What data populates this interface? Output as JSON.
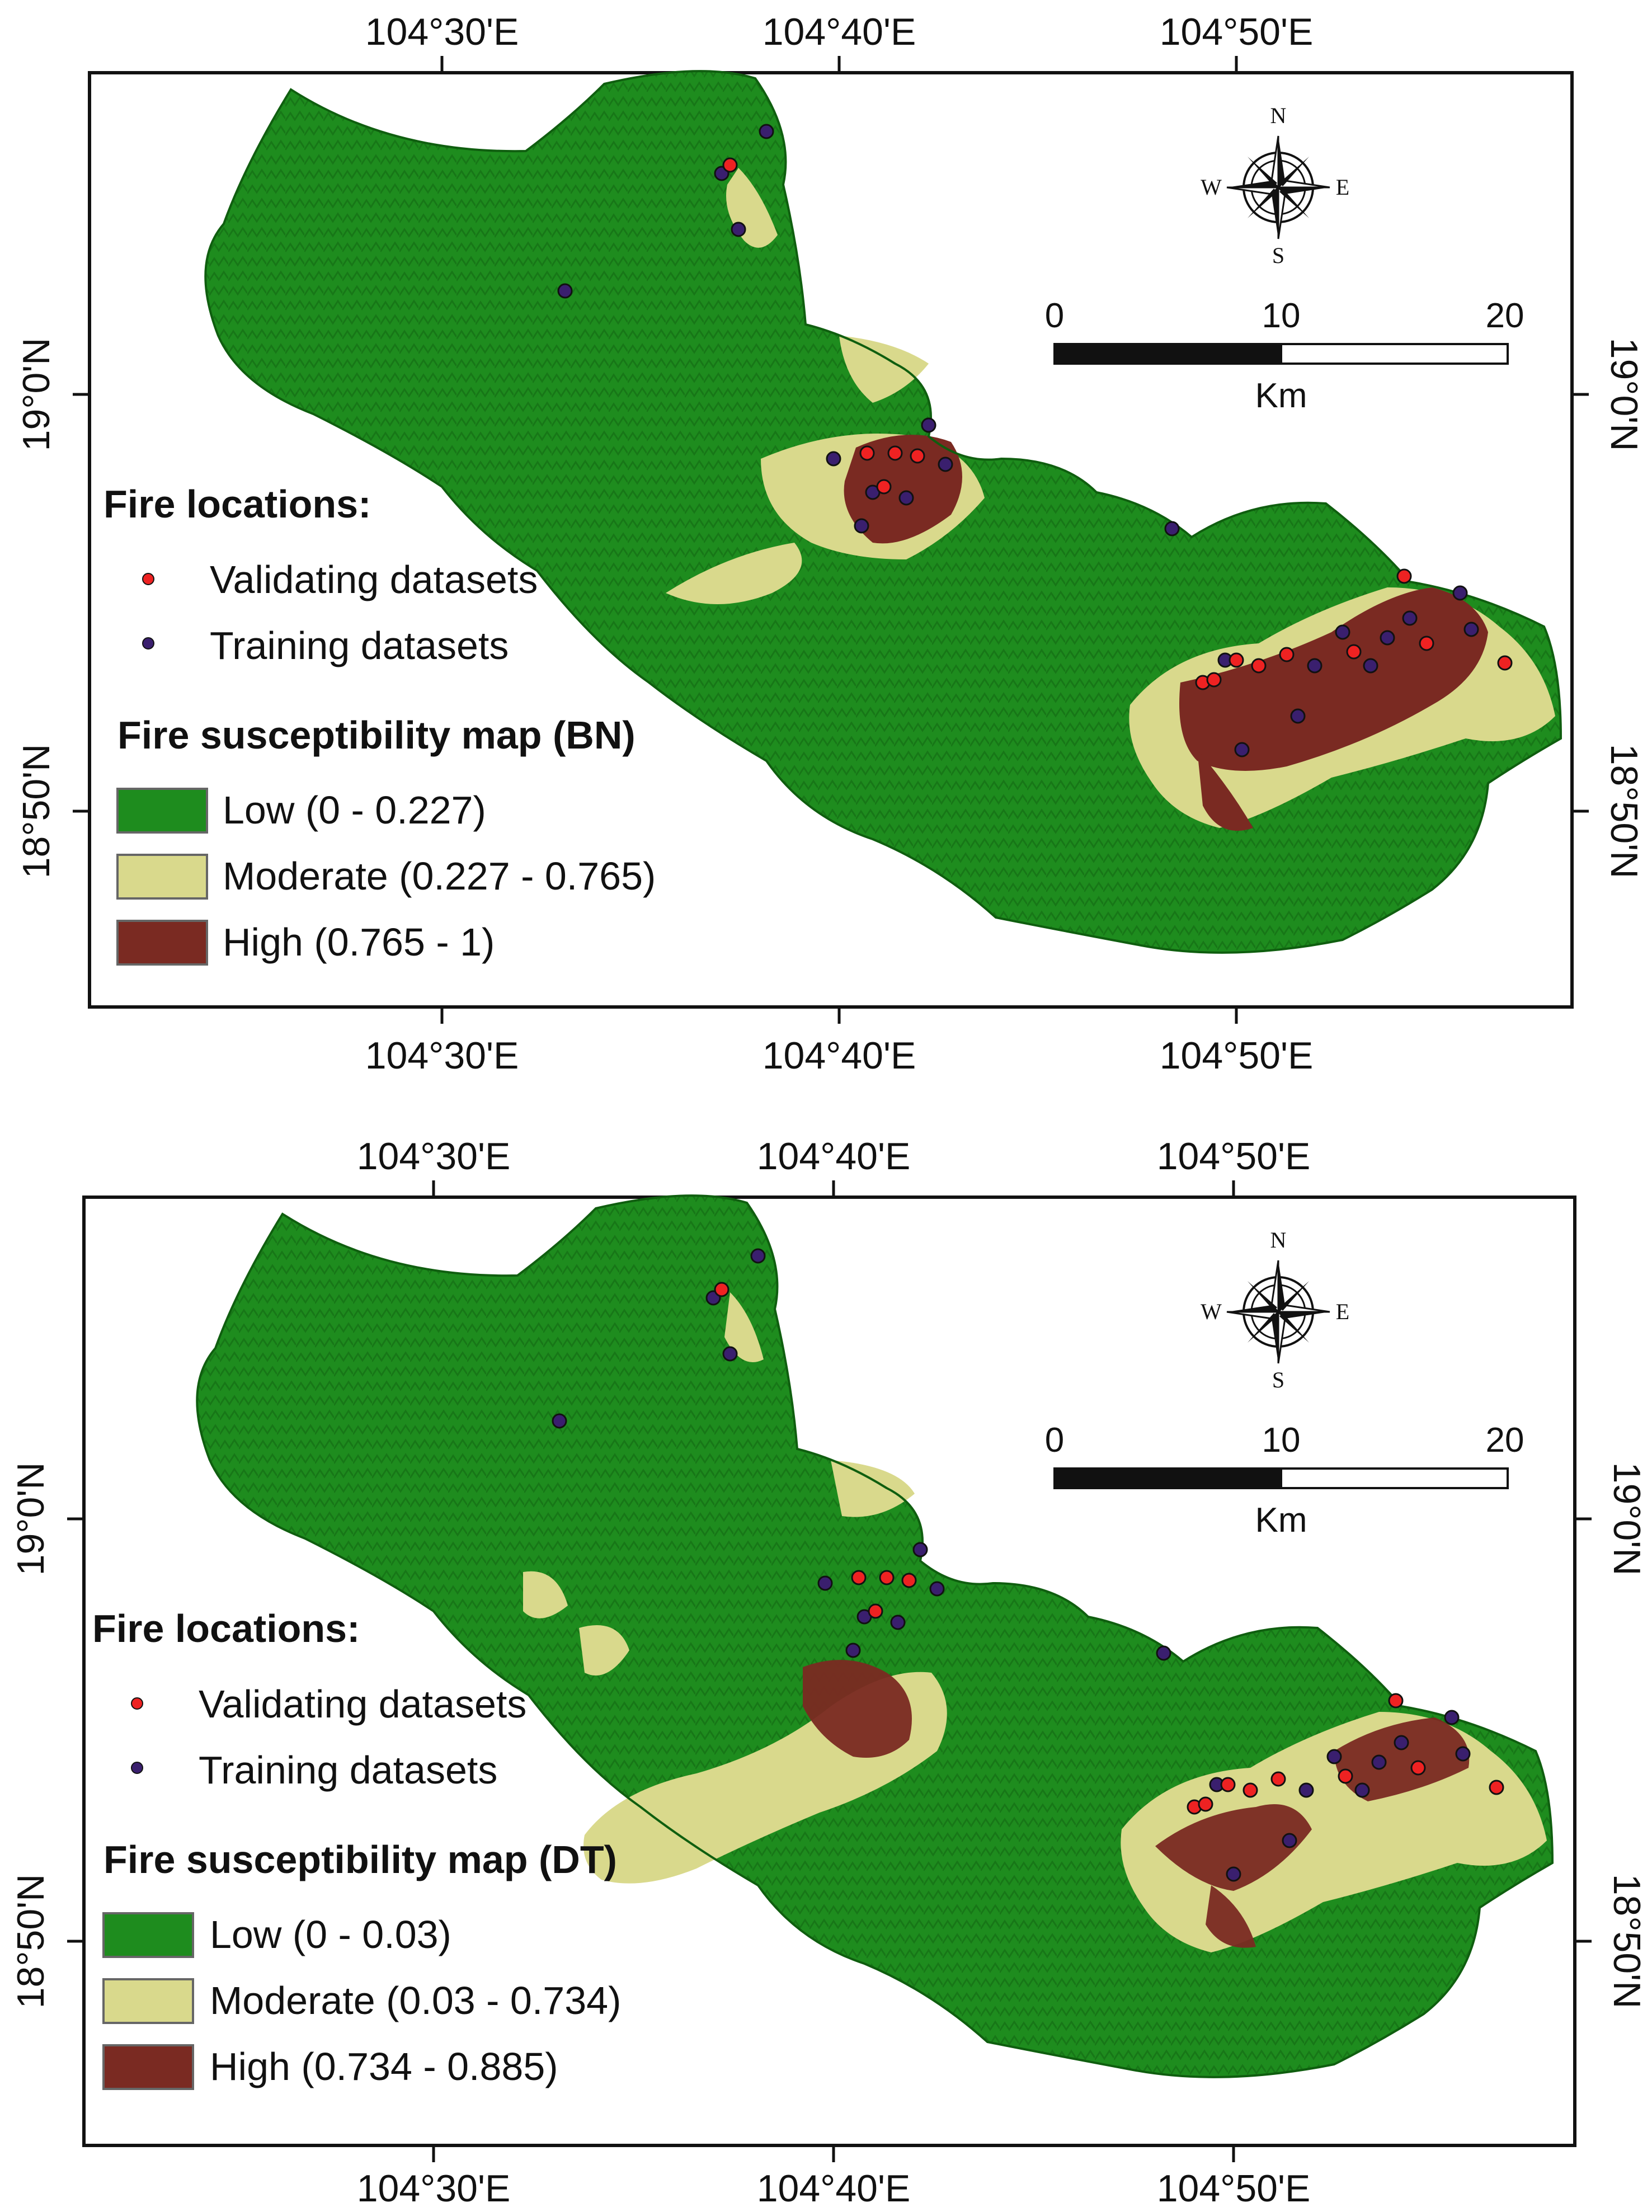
{
  "colors": {
    "low": "#1e8c1e",
    "low_shade": "#146b14",
    "moderate": "#d9d98c",
    "high": "#7a2a22",
    "validating_point": "#ee2222",
    "training_point": "#3a1f6e"
  },
  "axes": {
    "longitude_labels": [
      "104°30'E",
      "104°40'E",
      "104°50'E"
    ],
    "latitude_labels": [
      "19°0'N",
      "18°50'N"
    ]
  },
  "scale_bar": {
    "ticks": [
      "0",
      "10",
      "20"
    ],
    "unit": "Km"
  },
  "compass": {
    "n": "N",
    "s": "S",
    "e": "E",
    "w": "W",
    "icon": "compass-rose-icon"
  },
  "panels": [
    {
      "id": "bn",
      "fire_locations_title": "Fire locations:",
      "validating_label": "Validating datasets",
      "training_label": "Training datasets",
      "map_title": "Fire susceptibility map (BN)",
      "classes": [
        {
          "label": "Low (0 - 0.227)"
        },
        {
          "label": "Moderate (0.227 - 0.765)"
        },
        {
          "label": "High (0.765 - 1)"
        }
      ]
    },
    {
      "id": "dt",
      "fire_locations_title": "Fire locations:",
      "validating_label": "Validating datasets",
      "training_label": "Training datasets",
      "map_title": "Fire susceptibility map (DT)",
      "classes": [
        {
          "label": "Low (0 - 0.03)"
        },
        {
          "label": "Moderate (0.03 - 0.734)"
        },
        {
          "label": "High (0.734 - 0.885)"
        }
      ]
    }
  ]
}
